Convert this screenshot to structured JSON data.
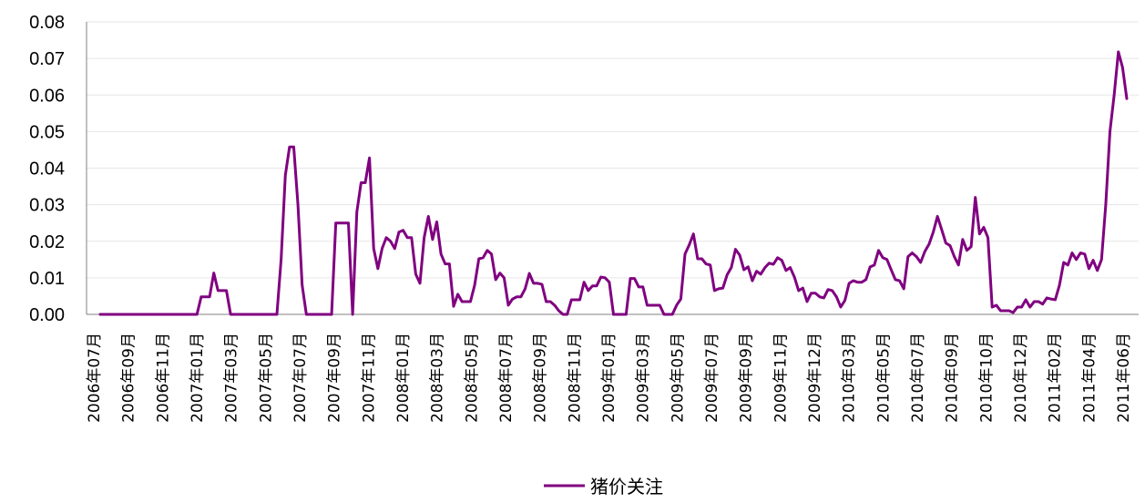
{
  "chart_data": {
    "type": "line",
    "title": "",
    "xlabel": "",
    "ylabel": "",
    "ylim": [
      0,
      0.08
    ],
    "yticks": [
      "0.00",
      "0.01",
      "0.02",
      "0.03",
      "0.04",
      "0.05",
      "0.06",
      "0.07",
      "0.08"
    ],
    "grid": "horizontal",
    "legend_position": "bottom",
    "series_color": "#800080",
    "x_tick_labels": [
      "2006年07月",
      "2006年09月",
      "2006年11月",
      "2007年01月",
      "2007年03月",
      "2007年05月",
      "2007年07月",
      "2007年09月",
      "2007年11月",
      "2008年01月",
      "2008年03月",
      "2008年05月",
      "2008年07月",
      "2008年09月",
      "2008年11月",
      "2009年01月",
      "2009年03月",
      "2009年05月",
      "2009年07月",
      "2009年09月",
      "2009年11月",
      "2009年12月",
      "2010年03月",
      "2010年05月",
      "2010年07月",
      "2010年09月",
      "2010年10月",
      "2010年12月",
      "2011年02月",
      "2011年04月",
      "2011年06月"
    ],
    "series": [
      {
        "name": "猪价关注",
        "values": [
          0,
          0,
          0,
          0,
          0,
          0,
          0,
          0,
          0,
          0,
          0,
          0,
          0,
          0,
          0,
          0,
          0,
          0,
          0,
          0,
          0,
          0,
          0,
          0,
          0.0048,
          0.0048,
          0.0048,
          0.0113,
          0.0065,
          0.0065,
          0.0065,
          0,
          0,
          0,
          0,
          0,
          0,
          0,
          0,
          0,
          0,
          0,
          0,
          0.015,
          0.038,
          0.0458,
          0.0458,
          0.03,
          0.008,
          0,
          0,
          0,
          0,
          0,
          0,
          0,
          0.025,
          0.025,
          0.025,
          0.025,
          0,
          0.028,
          0.036,
          0.036,
          0.0428,
          0.018,
          0.0125,
          0.018,
          0.021,
          0.02,
          0.018,
          0.0225,
          0.023,
          0.021,
          0.021,
          0.011,
          0.0085,
          0.021,
          0.0268,
          0.0205,
          0.0253,
          0.0165,
          0.0138,
          0.0138,
          0.0022,
          0.0055,
          0.0035,
          0.0035,
          0.0035,
          0.008,
          0.0152,
          0.0155,
          0.0175,
          0.0165,
          0.0095,
          0.0113,
          0.01,
          0.0025,
          0.0042,
          0.0048,
          0.0048,
          0.007,
          0.0112,
          0.0085,
          0.0085,
          0.0082,
          0.0035,
          0.0035,
          0.0025,
          0.001,
          0,
          0,
          0.004,
          0.004,
          0.004,
          0.0088,
          0.0065,
          0.0078,
          0.0078,
          0.0102,
          0.01,
          0.0088,
          0,
          0,
          0,
          0,
          0.0098,
          0.0098,
          0.0075,
          0.0075,
          0.0025,
          0.0025,
          0.0025,
          0.0025,
          0,
          0,
          0,
          0.0025,
          0.0042,
          0.0165,
          0.019,
          0.022,
          0.0152,
          0.0152,
          0.0138,
          0.0135,
          0.0065,
          0.007,
          0.0072,
          0.0108,
          0.0128,
          0.0178,
          0.0162,
          0.0122,
          0.013,
          0.0092,
          0.0118,
          0.011,
          0.0128,
          0.014,
          0.0137,
          0.0155,
          0.0148,
          0.012,
          0.0128,
          0.0102,
          0.0065,
          0.0072,
          0.0035,
          0.0058,
          0.0058,
          0.0048,
          0.0045,
          0.0068,
          0.0065,
          0.0048,
          0.002,
          0.0038,
          0.0085,
          0.0092,
          0.0088,
          0.0088,
          0.0095,
          0.013,
          0.0135,
          0.0175,
          0.0155,
          0.015,
          0.0122,
          0.0095,
          0.0092,
          0.007,
          0.0158,
          0.0168,
          0.0158,
          0.0142,
          0.0172,
          0.0192,
          0.0225,
          0.0268,
          0.0232,
          0.0195,
          0.0188,
          0.0158,
          0.0135,
          0.0205,
          0.0175,
          0.0185,
          0.032,
          0.022,
          0.0238,
          0.021,
          0.002,
          0.0025,
          0.001,
          0.001,
          0.001,
          0.0005,
          0.002,
          0.002,
          0.004,
          0.002,
          0.0035,
          0.0035,
          0.0028,
          0.0045,
          0.0042,
          0.004,
          0.008,
          0.0142,
          0.0135,
          0.0168,
          0.015,
          0.0168,
          0.0165,
          0.0125,
          0.0148,
          0.012,
          0.015,
          0.03,
          0.05,
          0.06,
          0.0718,
          0.0675,
          0.059
        ]
      }
    ]
  }
}
